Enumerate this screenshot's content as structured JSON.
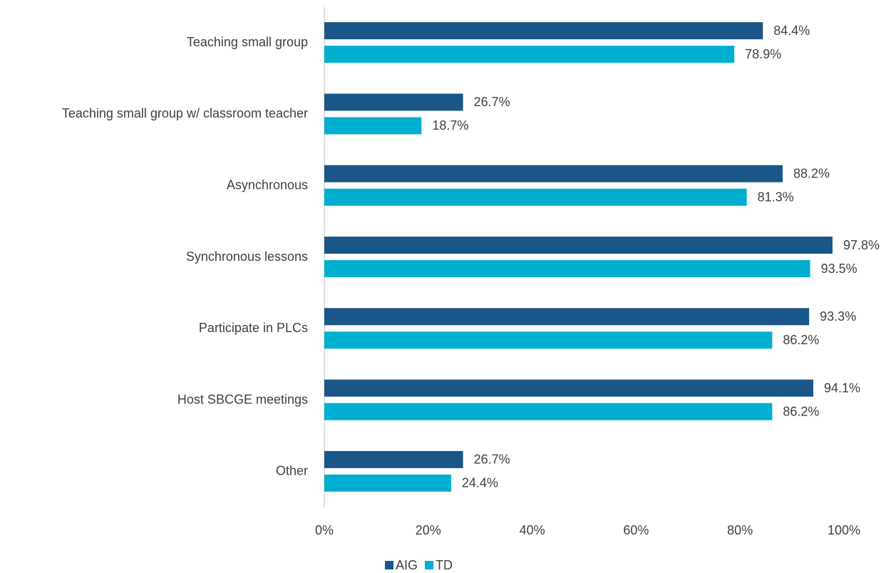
{
  "chart_data": {
    "type": "bar",
    "orientation": "horizontal",
    "categories": [
      "Teaching small group",
      "Teaching small group w/ classroom teacher",
      "Asynchronous",
      "Synchronous lessons",
      "Participate in PLCs",
      "Host SBCGE meetings",
      "Other"
    ],
    "series": [
      {
        "name": "AIG",
        "color": "#1a5687",
        "values": [
          84.4,
          26.7,
          88.2,
          97.8,
          93.3,
          94.1,
          26.7
        ],
        "value_labels": [
          "84.4%",
          "26.7%",
          "88.2%",
          "97.8%",
          "93.3%",
          "94.1%",
          "26.7%"
        ]
      },
      {
        "name": "TD",
        "color": "#00aed0",
        "values": [
          78.9,
          18.7,
          81.3,
          93.5,
          86.2,
          86.2,
          24.4
        ],
        "value_labels": [
          "78.9%",
          "18.7%",
          "81.3%",
          "93.5%",
          "86.2%",
          "86.2%",
          "24.4%"
        ]
      }
    ],
    "xlim": [
      0,
      100
    ],
    "xticks": [
      {
        "value": 0,
        "label": "0%"
      },
      {
        "value": 20,
        "label": "20%"
      },
      {
        "value": 40,
        "label": "40%"
      },
      {
        "value": 60,
        "label": "60%"
      },
      {
        "value": 80,
        "label": "80%"
      },
      {
        "value": 100,
        "label": "100%"
      }
    ],
    "grid": false,
    "legend": "bottom"
  }
}
